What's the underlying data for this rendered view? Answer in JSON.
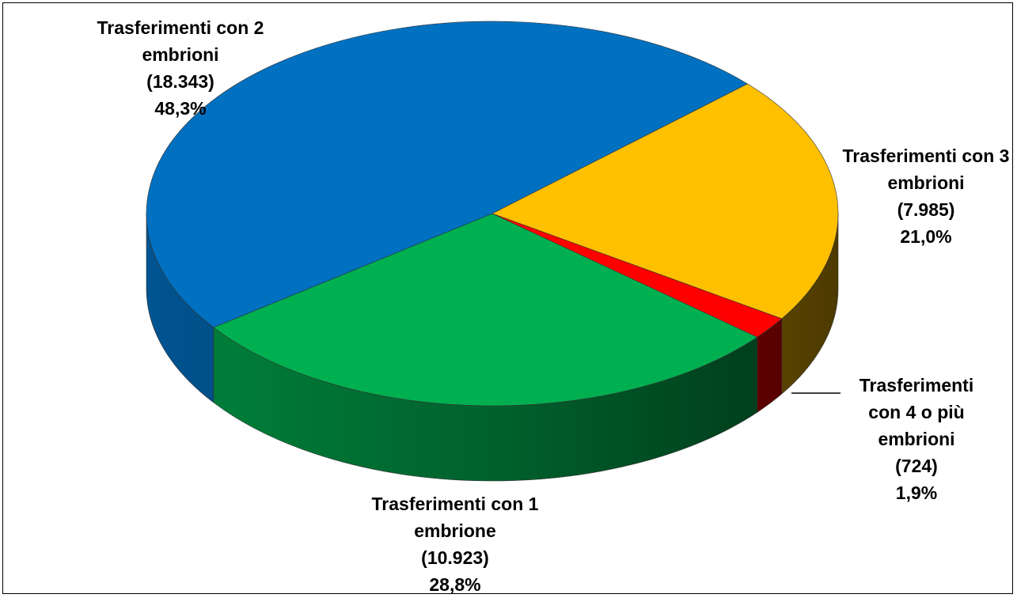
{
  "chart_data": {
    "type": "pie",
    "categories": [
      "Trasferimenti con 1 embrione",
      "Trasferimenti con 2 embrioni",
      "Trasferimenti con 3 embrioni",
      "Trasferimenti con 4 o più embrioni"
    ],
    "values": [
      28.8,
      48.3,
      21.0,
      1.9
    ],
    "value_labels": [
      "28,8%",
      "48,3%",
      "21,0%",
      "1,9%"
    ],
    "counts": [
      10923,
      18343,
      7985,
      724
    ],
    "count_labels": [
      "(10.923)",
      "(18.343)",
      "(7.985)",
      "(724)"
    ],
    "colors": [
      "#00b050",
      "#0070c0",
      "#ffc000",
      "#ff0000"
    ]
  }
}
